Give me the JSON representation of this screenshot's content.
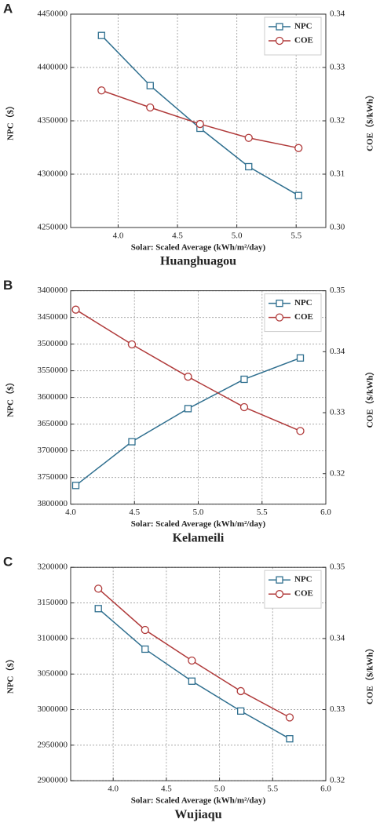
{
  "chart_data": [
    {
      "type": "line",
      "panel_label": "A",
      "title": "Huanghuagou",
      "xlabel": "Solar: Scaled Average (kWh/m²/day)",
      "ylabel": "NPC（$）",
      "y2label": "COE（$/kWh）",
      "x": [
        3.86,
        4.27,
        4.69,
        5.1,
        5.52
      ],
      "series": [
        {
          "name": "NPC",
          "color": "#2f6f8f",
          "marker": "square",
          "values": [
            4430000,
            4383000,
            4343000,
            4307000,
            4280000
          ]
        },
        {
          "name": "COE",
          "color": "#b03a3a",
          "marker": "circle",
          "axis": "y2",
          "values": [
            0.3257,
            0.3225,
            0.3194,
            0.3168,
            0.3149
          ]
        }
      ],
      "xlim": [
        3.6,
        5.75
      ],
      "xticks": [
        {
          "value": 4,
          "label": "4.0"
        },
        4.5,
        {
          "value": 5,
          "label": "5.0"
        },
        5.5
      ],
      "ylim": [
        4250000,
        4450000
      ],
      "yticks": [
        4250000,
        4300000,
        4350000,
        4400000,
        4450000
      ],
      "y2lim": [
        0.3,
        0.34
      ],
      "y2ticks": [
        {
          "value": 0.3,
          "label": "0.30"
        },
        0.31,
        0.32,
        0.33,
        0.34
      ],
      "grid": true,
      "legend": "upper right"
    },
    {
      "type": "line",
      "panel_label": "B",
      "title": "Kelameili",
      "xlabel": "Solar: Scaled Average (kWh/m²/day)",
      "ylabel": "NPC（$）",
      "y2label": "COE（$/kWh）",
      "x": [
        4.04,
        4.48,
        4.92,
        5.36,
        5.8
      ],
      "series": [
        {
          "name": "NPC",
          "color": "#2f6f8f",
          "marker": "square",
          "values": [
            3765000,
            3683000,
            3621000,
            3566000,
            3526000
          ]
        },
        {
          "name": "COE",
          "color": "#b03a3a",
          "marker": "circle",
          "axis": "y2",
          "values": [
            0.3469,
            0.3412,
            0.3359,
            0.3309,
            0.327
          ]
        }
      ],
      "xlim": [
        4,
        6
      ],
      "xticks": [
        {
          "value": 4,
          "label": "4.0"
        },
        4.5,
        {
          "value": 5,
          "label": "5.0"
        },
        5.5,
        {
          "value": 6,
          "label": "6.0"
        }
      ],
      "ylim": [
        3800000,
        3400000
      ],
      "yticks": [
        3400000,
        3450000,
        3500000,
        3550000,
        3600000,
        3650000,
        3700000,
        3750000,
        3800000
      ],
      "y2lim": [
        0.315,
        0.35
      ],
      "y2ticks": [
        0.32,
        0.33,
        0.34,
        0.35
      ],
      "grid": true,
      "legend": "upper right"
    },
    {
      "type": "line",
      "panel_label": "C",
      "title": "Wujiaqu",
      "xlabel": "Solar: Scaled Average (kWh/m²/day)",
      "ylabel": "NPC（$）",
      "y2label": "COE（$/kWh）",
      "x": [
        3.86,
        4.3,
        4.74,
        5.2,
        5.66
      ],
      "series": [
        {
          "name": "NPC",
          "color": "#2f6f8f",
          "marker": "square",
          "values": [
            3142000,
            3085000,
            3040000,
            2998000,
            2959000
          ]
        },
        {
          "name": "COE",
          "color": "#b03a3a",
          "marker": "circle",
          "axis": "y2",
          "values": [
            0.347,
            0.3412,
            0.3369,
            0.3326,
            0.3289
          ]
        }
      ],
      "xlim": [
        3.6,
        6
      ],
      "xticks": [
        {
          "value": 4,
          "label": "4.0"
        },
        4.5,
        {
          "value": 5,
          "label": "5.0"
        },
        5.5,
        {
          "value": 6,
          "label": "6.0"
        }
      ],
      "ylim": [
        2900000,
        3200000
      ],
      "yticks": [
        2900000,
        2950000,
        3000000,
        3050000,
        3100000,
        3150000,
        3200000
      ],
      "y2lim": [
        0.32,
        0.35
      ],
      "y2ticks": [
        0.32,
        0.33,
        0.34,
        0.35
      ],
      "grid": true,
      "legend": "upper right"
    }
  ]
}
